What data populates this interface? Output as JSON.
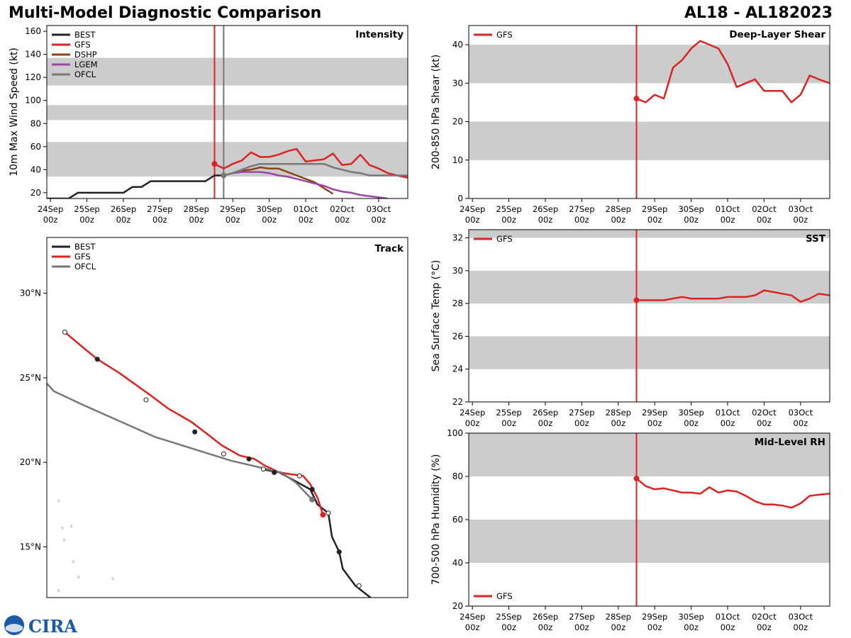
{
  "header": {
    "title": "Multi-Model Diagnostic Comparison",
    "storm_id": "AL18 - AL182023"
  },
  "logo": {
    "text": "CIRA"
  },
  "colors": {
    "BEST": "#222222",
    "GFS": "#dd2222",
    "DSHP": "#8b4513",
    "LGEM": "#9b45a5",
    "OFCL": "#777777",
    "band": "#cccccc"
  },
  "time_axis": {
    "ticks": [
      0,
      1,
      2,
      3,
      4,
      5,
      6,
      7,
      8,
      9
    ],
    "labels": [
      "24Sep\n00z",
      "25Sep\n00z",
      "26Sep\n00z",
      "27Sep\n00z",
      "28Sep\n00z",
      "29Sep\n00z",
      "30Sep\n00z",
      "01Oct\n00z",
      "02Oct\n00z",
      "03Oct\n00z"
    ],
    "range_days": [
      -0.1,
      9.8
    ],
    "init_time": 4.5
  },
  "chart_data": [
    {
      "id": "intensity",
      "type": "line",
      "title": "Intensity",
      "ylabel": "10m Max Wind Speed (kt)",
      "ylim": [
        15,
        165
      ],
      "yticks": [
        20,
        40,
        60,
        80,
        100,
        120,
        140,
        160
      ],
      "bands": [
        [
          34,
          64
        ],
        [
          83,
          96
        ],
        [
          113,
          137
        ]
      ],
      "vlines": [
        {
          "x": 4.5,
          "color_key": "GFS"
        },
        {
          "x": 4.75,
          "color_key": "OFCL"
        }
      ],
      "legend": [
        "BEST",
        "GFS",
        "DSHP",
        "LGEM",
        "OFCL"
      ],
      "series": [
        {
          "name": "BEST",
          "x": [
            -0.1,
            0.25,
            0.5,
            0.75,
            1,
            1.25,
            1.5,
            1.75,
            2,
            2.25,
            2.5,
            2.75,
            3,
            3.25,
            3.5,
            3.75,
            4,
            4.25,
            4.5,
            4.75
          ],
          "y": [
            15,
            15,
            15,
            20,
            20,
            20,
            20,
            20,
            20,
            25,
            25,
            30,
            30,
            30,
            30,
            30,
            30,
            30,
            35,
            35
          ]
        },
        {
          "name": "GFS",
          "x": [
            4.5,
            4.75,
            5,
            5.25,
            5.5,
            5.75,
            6,
            6.25,
            6.5,
            6.75,
            7,
            7.25,
            7.5,
            7.75,
            8,
            8.25,
            8.5,
            8.75,
            9,
            9.25,
            9.5,
            9.8
          ],
          "y": [
            45,
            41,
            45,
            48,
            55,
            51,
            51,
            53,
            56,
            58,
            47,
            48,
            49,
            54,
            44,
            45,
            53,
            44,
            41,
            37,
            35,
            33
          ],
          "marker_first": true
        },
        {
          "name": "DSHP",
          "x": [
            4.75,
            5,
            5.25,
            5.5,
            5.75,
            6,
            6.25,
            6.5,
            6.75,
            7,
            7.25,
            7.5,
            7.75
          ],
          "y": [
            35,
            37,
            39,
            40,
            42,
            41,
            41,
            38,
            35,
            32,
            29,
            24,
            19
          ]
        },
        {
          "name": "LGEM",
          "x": [
            4.75,
            5,
            5.25,
            5.5,
            5.75,
            6,
            6.25,
            6.5,
            6.75,
            7,
            7.25,
            7.5,
            7.75,
            8,
            8.25,
            8.5,
            8.75,
            9,
            9.25
          ],
          "y": [
            35,
            37,
            38,
            38,
            38,
            37,
            35,
            34,
            32,
            30,
            28,
            26,
            23,
            21,
            20,
            18,
            17,
            16,
            15
          ]
        },
        {
          "name": "OFCL",
          "x": [
            4.75,
            5,
            5.25,
            5.5,
            5.75,
            6,
            6.25,
            6.5,
            6.75,
            7,
            7.25,
            7.5,
            7.75,
            8,
            8.25,
            8.5,
            8.75,
            9,
            9.25,
            9.5,
            9.8
          ],
          "y": [
            35,
            37,
            40,
            43,
            45,
            45,
            45,
            45,
            45,
            45,
            45,
            45,
            42,
            40,
            38,
            37,
            35,
            35,
            35,
            35,
            35
          ],
          "marker_first": true
        }
      ]
    },
    {
      "id": "shear",
      "type": "line",
      "title": "Deep-Layer Shear",
      "ylabel": "200-850 hPa Shear (kt)",
      "ylim": [
        0,
        45
      ],
      "yticks": [
        0,
        10,
        20,
        30,
        40
      ],
      "bands": [
        [
          10,
          20
        ],
        [
          30,
          40
        ]
      ],
      "vlines": [
        {
          "x": 4.5,
          "color_key": "GFS"
        }
      ],
      "legend": [
        "GFS"
      ],
      "legend_pos": "top-left",
      "series": [
        {
          "name": "GFS",
          "x": [
            4.5,
            4.75,
            5,
            5.25,
            5.5,
            5.75,
            6,
            6.25,
            6.5,
            6.75,
            7,
            7.25,
            7.5,
            7.75,
            8,
            8.25,
            8.5,
            8.75,
            9,
            9.25,
            9.5,
            9.8
          ],
          "y": [
            26,
            25,
            27,
            26,
            34,
            36,
            39,
            41,
            40,
            39,
            35,
            29,
            30,
            31,
            28,
            28,
            28,
            25,
            27,
            32,
            31,
            30
          ],
          "marker_first": true
        }
      ]
    },
    {
      "id": "sst",
      "type": "line",
      "title": "SST",
      "ylabel": "Sea Surface Temp (°C)",
      "ylim": [
        22,
        32.5
      ],
      "yticks": [
        22,
        24,
        26,
        28,
        30,
        32
      ],
      "bands": [
        [
          24,
          26
        ],
        [
          28,
          30
        ],
        [
          32,
          34
        ]
      ],
      "vlines": [
        {
          "x": 4.5,
          "color_key": "GFS"
        }
      ],
      "legend": [
        "GFS"
      ],
      "legend_pos": "top-left",
      "series": [
        {
          "name": "GFS",
          "x": [
            4.5,
            4.75,
            5,
            5.25,
            5.5,
            5.75,
            6,
            6.25,
            6.5,
            6.75,
            7,
            7.25,
            7.5,
            7.75,
            8,
            8.25,
            8.5,
            8.75,
            9,
            9.25,
            9.5,
            9.8
          ],
          "y": [
            28.2,
            28.2,
            28.2,
            28.2,
            28.3,
            28.4,
            28.3,
            28.3,
            28.3,
            28.3,
            28.4,
            28.4,
            28.4,
            28.5,
            28.8,
            28.7,
            28.6,
            28.5,
            28.1,
            28.3,
            28.6,
            28.5
          ],
          "marker_first": true
        }
      ]
    },
    {
      "id": "rh",
      "type": "line",
      "title": "Mid-Level RH",
      "ylabel": "700-500 hPa Humidity (%)",
      "ylim": [
        20,
        100
      ],
      "yticks": [
        20,
        40,
        60,
        80,
        100
      ],
      "bands": [
        [
          40,
          60
        ],
        [
          80,
          100
        ]
      ],
      "vlines": [
        {
          "x": 4.5,
          "color_key": "GFS"
        }
      ],
      "legend": [
        "GFS"
      ],
      "legend_pos": "bottom-left",
      "series": [
        {
          "name": "GFS",
          "x": [
            4.5,
            4.75,
            5,
            5.25,
            5.5,
            5.75,
            6,
            6.25,
            6.5,
            6.75,
            7,
            7.25,
            7.5,
            7.75,
            8,
            8.25,
            8.5,
            8.75,
            9,
            9.25,
            9.5,
            9.8
          ],
          "y": [
            79,
            75.5,
            74,
            74.5,
            73.5,
            72.5,
            72.5,
            72,
            75,
            72.5,
            73.5,
            73,
            71,
            68.5,
            67,
            67,
            66.5,
            65.5,
            67.5,
            71,
            71.5,
            72
          ],
          "marker_first": true
        }
      ]
    },
    {
      "id": "track",
      "type": "line",
      "title": "Track",
      "legend": [
        "BEST",
        "GFS",
        "OFCL"
      ],
      "lon_range": [
        -74,
        -54
      ],
      "lat_range": [
        12,
        33.3
      ],
      "lat_ticks": [
        15,
        20,
        25,
        30
      ],
      "lat_labels": [
        "15°N",
        "20°N",
        "25°N",
        "30°N"
      ],
      "series": [
        {
          "name": "BEST",
          "points": [
            [
              -55.7,
              11.7
            ],
            [
              -56.9,
              12.7
            ],
            [
              -57.6,
              13.7
            ],
            [
              -57.8,
              14.7
            ],
            [
              -58.2,
              15.6
            ],
            [
              -58.4,
              17.0
            ],
            [
              -59.0,
              17.5
            ],
            [
              -59.4,
              18.4
            ],
            [
              -61.1,
              19.4
            ],
            [
              -62.1,
              19.6
            ]
          ]
        },
        {
          "name": "GFS",
          "points": [
            [
              -58.7,
              16.9
            ],
            [
              -59.0,
              17.9
            ],
            [
              -59.4,
              18.7
            ],
            [
              -59.8,
              19.2
            ],
            [
              -60.5,
              19.3
            ],
            [
              -61.1,
              19.4
            ],
            [
              -61.9,
              19.8
            ],
            [
              -62.5,
              20.2
            ],
            [
              -63.3,
              20.4
            ],
            [
              -64.3,
              21.0
            ],
            [
              -64.9,
              21.5
            ],
            [
              -66.0,
              22.4
            ],
            [
              -67.3,
              23.2
            ],
            [
              -68.3,
              24.0
            ],
            [
              -70.0,
              25.3
            ],
            [
              -71.2,
              26.1
            ],
            [
              -72.0,
              26.8
            ],
            [
              -73.0,
              27.7
            ]
          ],
          "filled_markers": [
            [
              -71.2,
              26.1
            ],
            [
              -65.8,
              21.8
            ],
            [
              -62.8,
              20.2
            ],
            [
              -61.4,
              19.4
            ],
            [
              -59.3,
              18.4
            ]
          ],
          "open_markers": [
            [
              -73.0,
              27.7
            ],
            [
              -68.5,
              23.7
            ],
            [
              -64.2,
              20.5
            ],
            [
              -62.0,
              19.6
            ],
            [
              -60.0,
              19.2
            ]
          ]
        },
        {
          "name": "OFCL",
          "points": [
            [
              -59.3,
              17.8
            ],
            [
              -60.2,
              18.8
            ],
            [
              -61.0,
              19.4
            ],
            [
              -63.8,
              20.1
            ],
            [
              -68.0,
              21.5
            ],
            [
              -72.0,
              23.4
            ],
            [
              -73.6,
              24.2
            ],
            [
              -76.0,
              27.0
            ]
          ]
        }
      ],
      "best_filled": [
        [
          -57.8,
          14.7
        ],
        [
          -59.3,
          18.4
        ]
      ],
      "best_open": [
        [
          -56.7,
          12.7
        ],
        [
          -58.4,
          17.0
        ]
      ]
    }
  ]
}
